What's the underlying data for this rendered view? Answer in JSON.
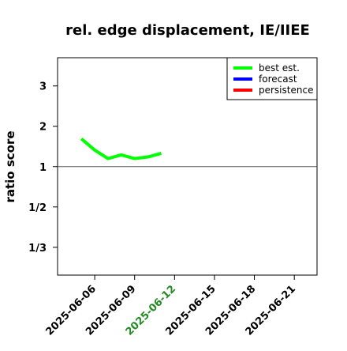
{
  "chart_data": {
    "type": "line",
    "title": "rel. edge displacement, IE/IIEE",
    "y_label": "ratio score",
    "yscale": "ratio",
    "x": [
      "2025-06-05",
      "2025-06-06",
      "2025-06-07",
      "2025-06-08",
      "2025-06-09",
      "2025-06-10",
      "2025-06-11"
    ],
    "series": [
      {
        "name": "best est.",
        "color": "#00ff00",
        "values": [
          1.69,
          1.41,
          1.2,
          1.29,
          1.2,
          1.24,
          1.33
        ]
      },
      {
        "name": "forecast",
        "color": "#0000ff",
        "values": [
          null,
          null,
          null,
          null,
          null,
          null,
          null
        ]
      },
      {
        "name": "persistence",
        "color": "#ff0000",
        "values": [
          null,
          null,
          null,
          null,
          null,
          null,
          null
        ]
      }
    ],
    "xlim": [
      "2025-06-03T05:00",
      "2025-06-22T17:00"
    ],
    "xticks": [
      "2025-06-06",
      "2025-06-09",
      "2025-06-12",
      "2025-06-15",
      "2025-06-18",
      "2025-06-21"
    ],
    "highlight_tick": "2025-06-12",
    "highlight_color": "#228b22",
    "ylim": [
      0.271,
      3.7
    ],
    "yticks": [
      3,
      2,
      1,
      {
        "value": 0.5,
        "label": "1/2"
      },
      {
        "value": 0.3333,
        "label": "1/3"
      }
    ],
    "reference_line": 1,
    "legend": "top-right"
  }
}
